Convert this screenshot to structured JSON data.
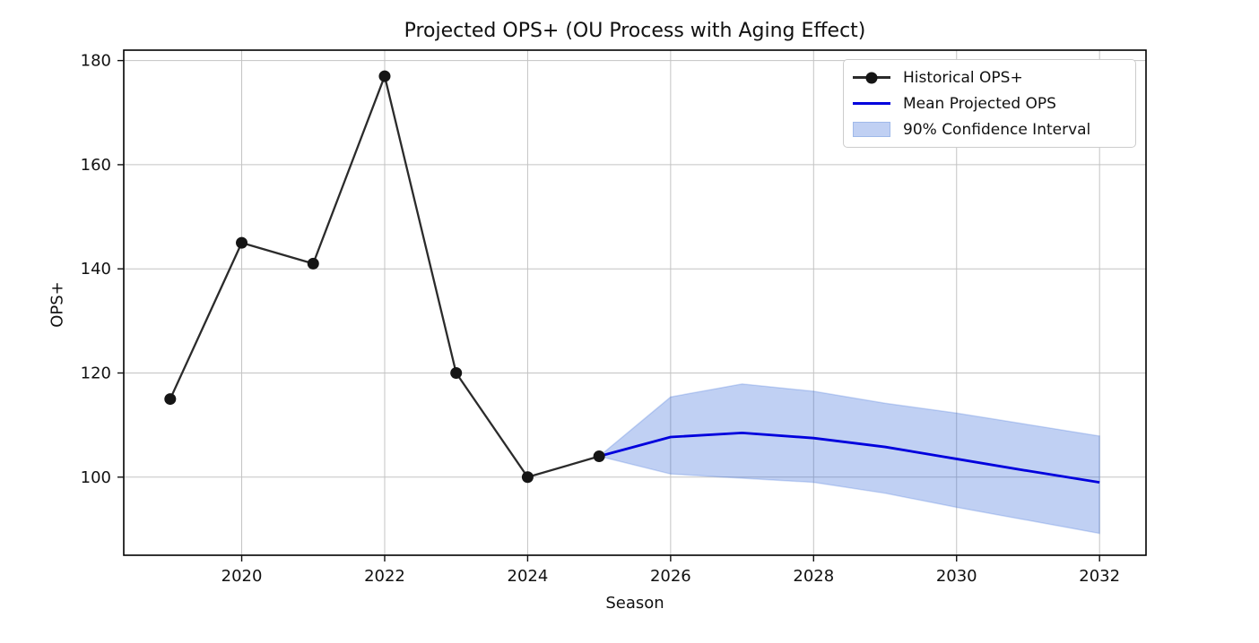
{
  "chart_data": {
    "type": "line",
    "title": "Projected OPS+ (OU Process with Aging Effect)",
    "xlabel": "Season",
    "ylabel": "OPS+",
    "xlim": [
      2018.35,
      2032.65
    ],
    "ylim": [
      85,
      182
    ],
    "xticks": [
      2020,
      2022,
      2024,
      2026,
      2028,
      2030,
      2032
    ],
    "yticks": [
      100,
      120,
      140,
      160,
      180
    ],
    "grid": true,
    "legend_position": "upper right",
    "series": [
      {
        "name": "Historical OPS+",
        "type": "line+markers",
        "color": "#2b2b2b",
        "marker_color": "#151515",
        "x": [
          2019,
          2020,
          2021,
          2022,
          2023,
          2024,
          2025
        ],
        "y": [
          115,
          145,
          141,
          177,
          120,
          100,
          104
        ]
      },
      {
        "name": "Mean Projected OPS",
        "type": "line",
        "color": "#0000dd",
        "x": [
          2025,
          2026,
          2027,
          2028,
          2029,
          2030,
          2031,
          2032
        ],
        "y": [
          104,
          107.7,
          108.5,
          107.5,
          105.8,
          103.5,
          101.2,
          99
        ]
      },
      {
        "name": "90% Confidence Interval",
        "type": "band",
        "fill": "#2d64d7",
        "opacity": 0.3,
        "x": [
          2025,
          2026,
          2027,
          2028,
          2029,
          2030,
          2031,
          2032
        ],
        "upper": [
          104,
          115.4,
          117.9,
          116.5,
          114.2,
          112.3,
          110.1,
          107.9
        ],
        "lower": [
          104,
          100.6,
          99.8,
          99,
          96.9,
          94.2,
          91.7,
          89.2
        ]
      }
    ]
  },
  "legend": {
    "items": [
      {
        "label": "Historical OPS+",
        "swatch": "line-with-marker",
        "color": "#2b2b2b"
      },
      {
        "label": "Mean Projected OPS",
        "swatch": "line",
        "color": "#0000dd"
      },
      {
        "label": "90% Confidence Interval",
        "swatch": "patch",
        "color": "#c0d0f3"
      }
    ]
  },
  "colors": {
    "grid": "#c3c3c3",
    "axes_frame": "#000000",
    "text": "#111111",
    "background": "#ffffff"
  }
}
